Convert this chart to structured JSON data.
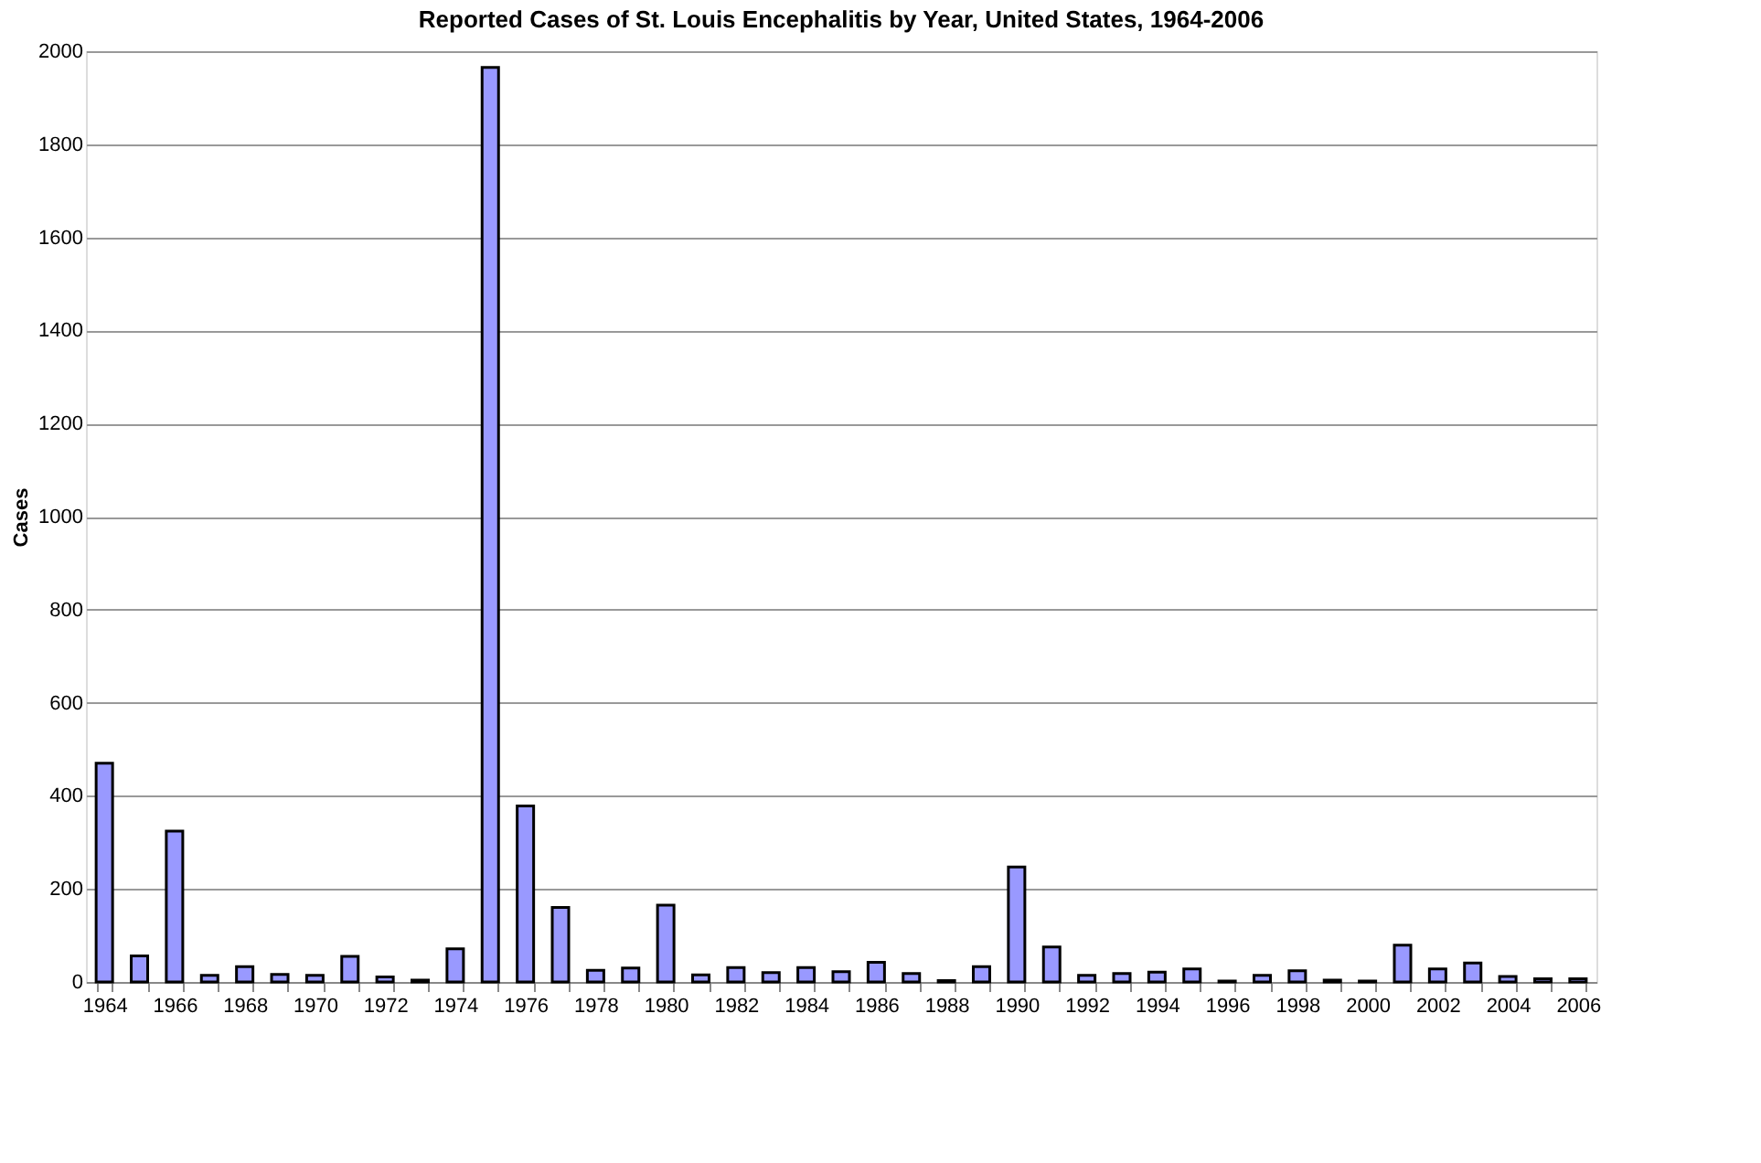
{
  "chart_data": {
    "type": "bar",
    "title": "Reported Cases of St. Louis Encephalitis by Year, United States, 1964-2006",
    "ylabel": "Cases",
    "categories": [
      "1964",
      null,
      "1966",
      null,
      "1968",
      null,
      "1970",
      null,
      "1972",
      null,
      "1974",
      null,
      "1976",
      null,
      "1978",
      null,
      "1980",
      null,
      "1982",
      null,
      "1984",
      null,
      "1986",
      null,
      "1988",
      null,
      "1990",
      null,
      "1992",
      null,
      "1994",
      null,
      "1996",
      null,
      "1998",
      null,
      "2000",
      null,
      "2002",
      null,
      "2004",
      null,
      "2006"
    ],
    "values": [
      470,
      56,
      324,
      14,
      33,
      16,
      14,
      55,
      11,
      4,
      71,
      1965,
      378,
      160,
      25,
      30,
      165,
      15,
      31,
      20,
      31,
      22,
      42,
      18,
      3,
      33,
      247,
      75,
      14,
      18,
      21,
      28,
      2,
      14,
      24,
      4,
      2,
      79,
      28,
      41,
      12,
      7,
      7
    ],
    "color": "#9999ff",
    "ylim": [
      0,
      2000
    ],
    "yticks": [
      0,
      200,
      400,
      600,
      800,
      1000,
      1200,
      1400,
      1600,
      1800,
      2000
    ],
    "grid": "y"
  }
}
